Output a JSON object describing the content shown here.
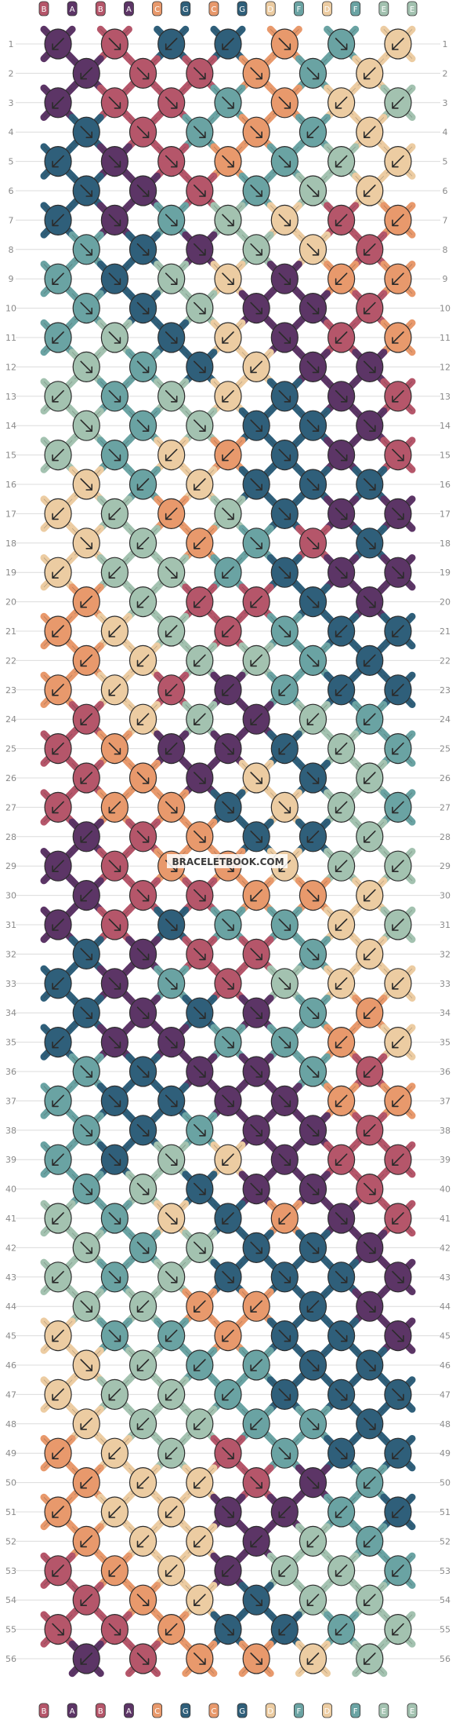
{
  "site": {
    "watermark": "BRACELETBOOK.COM"
  },
  "pattern": {
    "strands": [
      "B",
      "A",
      "B",
      "A",
      "C",
      "G",
      "C",
      "G",
      "D",
      "F",
      "D",
      "F",
      "E",
      "E"
    ],
    "rows": 56,
    "colors": {
      "A": "#5c3566",
      "B": "#b5566a",
      "C": "#e8996c",
      "D": "#ecccA2",
      "E": "#a3c2b0",
      "F": "#6aa3a3",
      "G": "#2f5f7a"
    },
    "knot_colors": [
      [
        "A",
        "B",
        "G",
        "G",
        "C",
        "F",
        "D",
        "E"
      ],
      [
        "A",
        "B",
        "B",
        "C",
        "F",
        "D",
        "E"
      ],
      [
        "A",
        "B",
        "B",
        "F",
        "C",
        "D",
        "E"
      ],
      [
        "G",
        "B",
        "F",
        "C",
        "F",
        "D",
        "E"
      ],
      [
        "G",
        "A",
        "B",
        "C",
        "F",
        "E",
        "D"
      ],
      [
        "G",
        "A",
        "B",
        "F",
        "E",
        "D",
        "D"
      ],
      [
        "G",
        "A",
        "F",
        "E",
        "D",
        "B",
        "C"
      ],
      [
        "F",
        "G",
        "A",
        "E",
        "D",
        "B",
        "C"
      ],
      [
        "F",
        "G",
        "E",
        "D",
        "A",
        "C",
        "C"
      ],
      [
        "F",
        "G",
        "E",
        "A",
        "A",
        "B",
        "C"
      ],
      [
        "F",
        "E",
        "G",
        "D",
        "A",
        "B",
        "C"
      ],
      [
        "E",
        "F",
        "G",
        "D",
        "A",
        "A",
        "C"
      ],
      [
        "E",
        "F",
        "E",
        "D",
        "G",
        "A",
        "B"
      ],
      [
        "E",
        "F",
        "E",
        "G",
        "G",
        "A",
        "B"
      ],
      [
        "E",
        "F",
        "D",
        "C",
        "G",
        "A",
        "B"
      ],
      [
        "D",
        "F",
        "D",
        "G",
        "G",
        "G",
        "A"
      ],
      [
        "D",
        "E",
        "C",
        "E",
        "G",
        "A",
        "A"
      ],
      [
        "D",
        "E",
        "C",
        "F",
        "B",
        "G",
        "A"
      ],
      [
        "D",
        "E",
        "E",
        "F",
        "G",
        "A",
        "A"
      ],
      [
        "C",
        "E",
        "B",
        "B",
        "G",
        "A",
        "G"
      ],
      [
        "C",
        "D",
        "E",
        "B",
        "F",
        "G",
        "G"
      ],
      [
        "C",
        "D",
        "E",
        "E",
        "F",
        "G",
        "G"
      ],
      [
        "C",
        "D",
        "B",
        "A",
        "F",
        "G",
        "G"
      ],
      [
        "B",
        "D",
        "E",
        "A",
        "E",
        "F",
        "F"
      ],
      [
        "B",
        "C",
        "A",
        "A",
        "G",
        "E",
        "F"
      ],
      [
        "B",
        "C",
        "A",
        "D",
        "G",
        "E",
        "F"
      ],
      [
        "B",
        "C",
        "C",
        "G",
        "D",
        "E",
        "F"
      ],
      [
        "A",
        "B",
        "C",
        "G",
        "G",
        "E",
        "F"
      ],
      [
        "A",
        "B",
        "C",
        "C",
        "D",
        "E",
        "E"
      ],
      [
        "A",
        "B",
        "B",
        "C",
        "C",
        "D",
        "E"
      ],
      [
        "A",
        "B",
        "G",
        "F",
        "F",
        "D",
        "E"
      ],
      [
        "G",
        "A",
        "B",
        "B",
        "F",
        "D",
        "E"
      ],
      [
        "G",
        "A",
        "F",
        "B",
        "E",
        "D",
        "D"
      ],
      [
        "G",
        "A",
        "G",
        "A",
        "F",
        "C",
        "D"
      ],
      [
        "G",
        "A",
        "A",
        "F",
        "F",
        "C",
        "D"
      ],
      [
        "F",
        "G",
        "A",
        "A",
        "F",
        "B",
        "C"
      ],
      [
        "F",
        "G",
        "G",
        "A",
        "A",
        "C",
        "C"
      ],
      [
        "F",
        "G",
        "F",
        "A",
        "A",
        "B",
        "C"
      ],
      [
        "F",
        "G",
        "E",
        "D",
        "A",
        "B",
        "B"
      ],
      [
        "F",
        "E",
        "G",
        "A",
        "A",
        "B",
        "B"
      ],
      [
        "E",
        "F",
        "D",
        "G",
        "C",
        "A",
        "B"
      ],
      [
        "E",
        "F",
        "E",
        "G",
        "G",
        "A",
        "A"
      ],
      [
        "E",
        "F",
        "E",
        "G",
        "G",
        "G",
        "A"
      ],
      [
        "E",
        "E",
        "C",
        "C",
        "G",
        "A",
        "A"
      ],
      [
        "D",
        "F",
        "F",
        "C",
        "G",
        "G",
        "A"
      ],
      [
        "D",
        "E",
        "F",
        "F",
        "G",
        "G",
        "A"
      ],
      [
        "D",
        "E",
        "E",
        "F",
        "G",
        "G",
        "G"
      ],
      [
        "D",
        "E",
        "E",
        "F",
        "F",
        "G",
        "G"
      ],
      [
        "C",
        "D",
        "E",
        "B",
        "F",
        "G",
        "G"
      ],
      [
        "C",
        "D",
        "D",
        "B",
        "A",
        "F",
        "G"
      ],
      [
        "C",
        "D",
        "D",
        "A",
        "A",
        "F",
        "G"
      ],
      [
        "C",
        "D",
        "D",
        "A",
        "E",
        "F",
        "F"
      ],
      [
        "B",
        "C",
        "D",
        "A",
        "E",
        "E",
        "F"
      ],
      [
        "B",
        "C",
        "D",
        "G",
        "E",
        "E",
        "F"
      ],
      [
        "B",
        "B",
        "C",
        "G",
        "G",
        "F",
        "E"
      ],
      [
        "A",
        "B",
        "C",
        "C",
        "D",
        "E",
        "E"
      ]
    ],
    "knot_arrows": [
      [
        "bl",
        "br",
        "bl",
        "bl",
        "br",
        "br",
        "bl",
        "bl"
      ],
      [
        "bl",
        "br",
        "br",
        "br",
        "br",
        "bl",
        "bl"
      ],
      [
        "bl",
        "br",
        "br",
        "br",
        "br",
        "bl",
        "bl"
      ],
      [
        "br",
        "br",
        "br",
        "br",
        "bl",
        "bl",
        "bl"
      ],
      [
        "bl",
        "br",
        "br",
        "br",
        "br",
        "bl",
        "bl"
      ],
      [
        "br",
        "br",
        "br",
        "br",
        "br",
        "bl",
        "bl"
      ],
      [
        "bl",
        "br",
        "br",
        "br",
        "br",
        "bl",
        "bl"
      ],
      [
        "br",
        "br",
        "br",
        "br",
        "br",
        "bl",
        "bl"
      ],
      [
        "bl",
        "br",
        "br",
        "br",
        "br",
        "bl",
        "bl"
      ],
      [
        "br",
        "br",
        "br",
        "br",
        "br",
        "bl",
        "bl"
      ],
      [
        "bl",
        "br",
        "br",
        "bl",
        "br",
        "bl",
        "bl"
      ],
      [
        "br",
        "br",
        "br",
        "bl",
        "br",
        "br",
        "bl"
      ],
      [
        "bl",
        "br",
        "br",
        "bl",
        "br",
        "br",
        "bl"
      ],
      [
        "br",
        "br",
        "br",
        "br",
        "br",
        "br",
        "br"
      ],
      [
        "bl",
        "br",
        "bl",
        "bl",
        "br",
        "br",
        "br"
      ],
      [
        "br",
        "bl",
        "bl",
        "br",
        "br",
        "br",
        "br"
      ],
      [
        "bl",
        "bl",
        "bl",
        "br",
        "br",
        "br",
        "br"
      ],
      [
        "br",
        "bl",
        "bl",
        "br",
        "br",
        "br",
        "br"
      ],
      [
        "bl",
        "bl",
        "br",
        "bl",
        "br",
        "br",
        "br"
      ],
      [
        "bl",
        "bl",
        "bl",
        "bl",
        "br",
        "br",
        "bl"
      ],
      [
        "bl",
        "bl",
        "bl",
        "bl",
        "br",
        "bl",
        "bl"
      ],
      [
        "bl",
        "bl",
        "bl",
        "bl",
        "br",
        "bl",
        "bl"
      ],
      [
        "bl",
        "bl",
        "bl",
        "bl",
        "bl",
        "bl",
        "bl"
      ],
      [
        "bl",
        "bl",
        "bl",
        "bl",
        "bl",
        "bl",
        "bl"
      ],
      [
        "bl",
        "br",
        "bl",
        "br",
        "bl",
        "bl",
        "bl"
      ],
      [
        "bl",
        "br",
        "br",
        "br",
        "br",
        "bl",
        "bl"
      ],
      [
        "bl",
        "bl",
        "br",
        "br",
        "br",
        "bl",
        "bl"
      ],
      [
        "bl",
        "br",
        "br",
        "br",
        "bl",
        "bl",
        "bl"
      ],
      [
        "bl",
        "br",
        "br",
        "br",
        "bl",
        "bl",
        "bl"
      ],
      [
        "bl",
        "br",
        "br",
        "bl",
        "br",
        "bl",
        "bl"
      ],
      [
        "bl",
        "br",
        "br",
        "br",
        "br",
        "bl",
        "bl"
      ],
      [
        "br",
        "br",
        "br",
        "br",
        "br",
        "bl",
        "bl"
      ],
      [
        "bl",
        "br",
        "br",
        "br",
        "br",
        "bl",
        "bl"
      ],
      [
        "br",
        "br",
        "br",
        "br",
        "br",
        "bl",
        "bl"
      ],
      [
        "bl",
        "br",
        "br",
        "br",
        "br",
        "bl",
        "bl"
      ],
      [
        "br",
        "br",
        "br",
        "br",
        "br",
        "bl",
        "bl"
      ],
      [
        "bl",
        "br",
        "br",
        "br",
        "br",
        "bl",
        "bl"
      ],
      [
        "br",
        "br",
        "br",
        "br",
        "br",
        "bl",
        "bl"
      ],
      [
        "bl",
        "br",
        "br",
        "bl",
        "br",
        "bl",
        "bl"
      ],
      [
        "br",
        "br",
        "br",
        "br",
        "br",
        "br",
        "bl"
      ],
      [
        "bl",
        "br",
        "br",
        "bl",
        "bl",
        "br",
        "bl"
      ],
      [
        "br",
        "br",
        "br",
        "br",
        "br",
        "br",
        "br"
      ],
      [
        "bl",
        "br",
        "br",
        "br",
        "br",
        "br",
        "br"
      ],
      [
        "br",
        "bl",
        "bl",
        "bl",
        "bl",
        "br",
        "br"
      ],
      [
        "bl",
        "br",
        "bl",
        "bl",
        "br",
        "br",
        "br"
      ],
      [
        "br",
        "bl",
        "bl",
        "bl",
        "br",
        "br",
        "br"
      ],
      [
        "bl",
        "bl",
        "bl",
        "bl",
        "br",
        "br",
        "br"
      ],
      [
        "bl",
        "bl",
        "bl",
        "bl",
        "br",
        "br",
        "br"
      ],
      [
        "bl",
        "bl",
        "bl",
        "br",
        "br",
        "br",
        "bl"
      ],
      [
        "bl",
        "bl",
        "bl",
        "br",
        "br",
        "bl",
        "bl"
      ],
      [
        "bl",
        "bl",
        "bl",
        "br",
        "bl",
        "bl",
        "bl"
      ],
      [
        "bl",
        "bl",
        "bl",
        "bl",
        "bl",
        "bl",
        "bl"
      ],
      [
        "bl",
        "bl",
        "bl",
        "bl",
        "bl",
        "bl",
        "bl"
      ],
      [
        "bl",
        "br",
        "bl",
        "br",
        "bl",
        "bl",
        "bl"
      ],
      [
        "br",
        "br",
        "bl",
        "br",
        "bl",
        "bl",
        "bl"
      ],
      [
        "bl",
        "br",
        "br",
        "br",
        "bl",
        "bl",
        "bl"
      ]
    ]
  }
}
